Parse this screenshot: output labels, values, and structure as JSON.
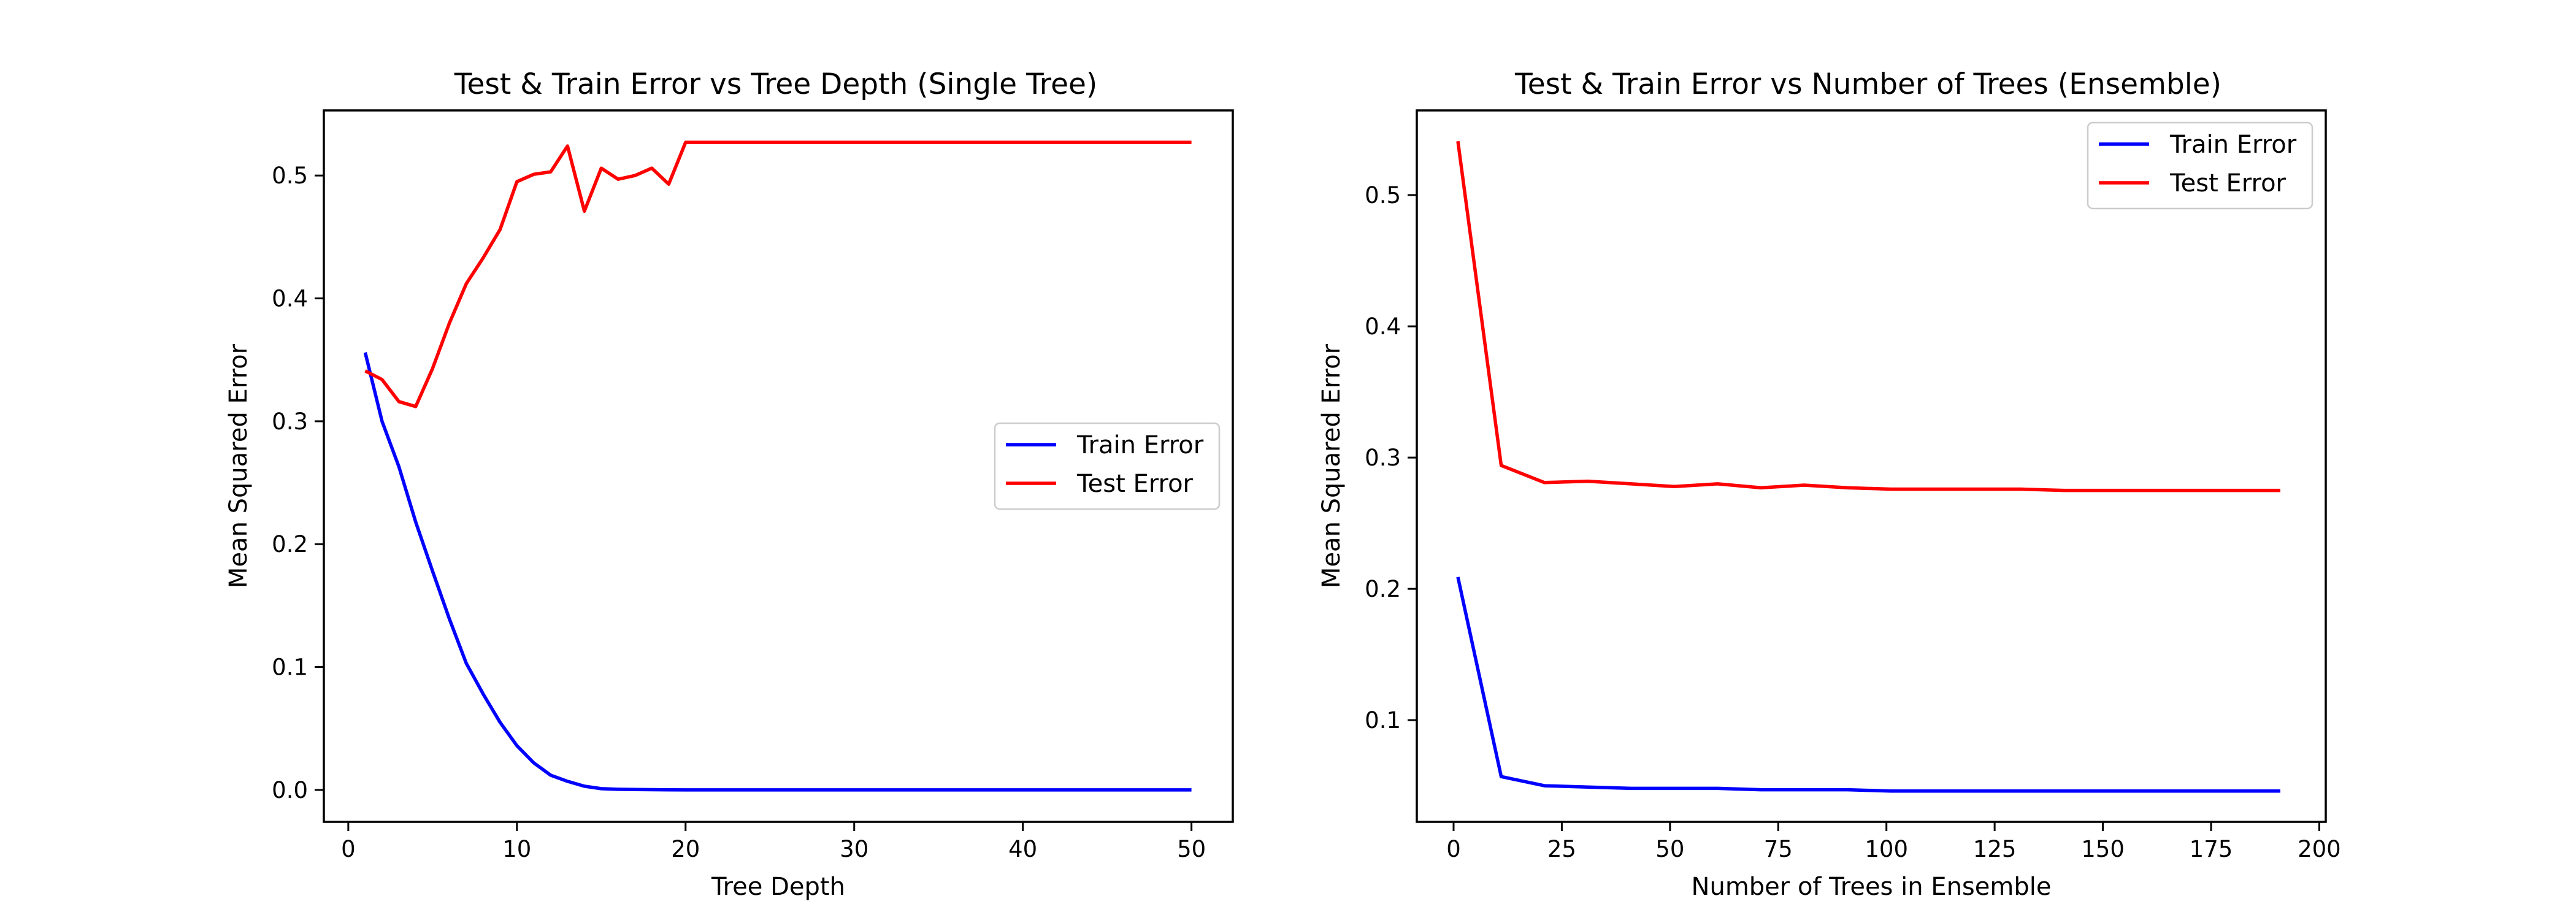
{
  "chart_data": [
    {
      "type": "line",
      "title": "Test & Train Error vs Tree Depth (Single Tree)",
      "xlabel": "Tree Depth",
      "ylabel": "Mean Squared Error",
      "xlim": [
        -1.45,
        52.45
      ],
      "ylim": [
        -0.026,
        0.553
      ],
      "xticks": [
        0,
        10,
        20,
        30,
        40,
        50
      ],
      "xtick_labels": [
        "0",
        "10",
        "20",
        "30",
        "40",
        "50"
      ],
      "yticks": [
        0.0,
        0.1,
        0.2,
        0.3,
        0.4,
        0.5
      ],
      "ytick_labels": [
        "0.0",
        "0.1",
        "0.2",
        "0.3",
        "0.4",
        "0.5"
      ],
      "grid": false,
      "legend_position": "center-right",
      "x": [
        1,
        2,
        3,
        4,
        5,
        6,
        7,
        8,
        9,
        10,
        11,
        12,
        13,
        14,
        15,
        16,
        17,
        18,
        19,
        20,
        21,
        22,
        23,
        24,
        25,
        26,
        27,
        28,
        29,
        30,
        31,
        32,
        33,
        34,
        35,
        36,
        37,
        38,
        39,
        40,
        41,
        42,
        43,
        44,
        45,
        46,
        47,
        48,
        49,
        50
      ],
      "series": [
        {
          "name": "Train Error",
          "color": "#0000ff",
          "values": [
            0.356,
            0.3,
            0.263,
            0.218,
            0.178,
            0.139,
            0.103,
            0.078,
            0.055,
            0.036,
            0.022,
            0.012,
            0.007,
            0.003,
            0.001,
            0.0005,
            0.0003,
            0.0002,
            0.0001,
            0,
            0,
            0,
            0,
            0,
            0,
            0,
            0,
            0,
            0,
            0,
            0,
            0,
            0,
            0,
            0,
            0,
            0,
            0,
            0,
            0,
            0,
            0,
            0,
            0,
            0,
            0,
            0,
            0,
            0,
            0
          ]
        },
        {
          "name": "Test Error",
          "color": "#ff0000",
          "values": [
            0.341,
            0.334,
            0.316,
            0.312,
            0.343,
            0.38,
            0.412,
            0.433,
            0.456,
            0.495,
            0.501,
            0.503,
            0.524,
            0.471,
            0.506,
            0.497,
            0.5,
            0.506,
            0.493,
            0.527,
            0.527,
            0.527,
            0.527,
            0.527,
            0.527,
            0.527,
            0.527,
            0.527,
            0.527,
            0.527,
            0.527,
            0.527,
            0.527,
            0.527,
            0.527,
            0.527,
            0.527,
            0.527,
            0.527,
            0.527,
            0.527,
            0.527,
            0.527,
            0.527,
            0.527,
            0.527,
            0.527,
            0.527,
            0.527,
            0.527
          ]
        }
      ]
    },
    {
      "type": "line",
      "title": "Test & Train Error vs Number of Trees (Ensemble)",
      "xlabel": "Number of Trees in Ensemble",
      "ylabel": "Mean Squared Error",
      "xlim": [
        -8.5,
        201.5
      ],
      "ylim": [
        0.0225,
        0.5645
      ],
      "xticks": [
        0,
        25,
        50,
        75,
        100,
        125,
        150,
        175,
        200
      ],
      "xtick_labels": [
        "0",
        "25",
        "50",
        "75",
        "100",
        "125",
        "150",
        "175",
        "200"
      ],
      "yticks": [
        0.1,
        0.2,
        0.3,
        0.4,
        0.5
      ],
      "ytick_labels": [
        "0.1",
        "0.2",
        "0.3",
        "0.4",
        "0.5"
      ],
      "grid": false,
      "legend_position": "top-right",
      "x": [
        1,
        11,
        21,
        31,
        41,
        51,
        61,
        71,
        81,
        91,
        101,
        111,
        121,
        131,
        141,
        151,
        161,
        171,
        181,
        191
      ],
      "series": [
        {
          "name": "Train Error",
          "color": "#0000ff",
          "values": [
            0.209,
            0.057,
            0.05,
            0.049,
            0.048,
            0.048,
            0.048,
            0.047,
            0.047,
            0.047,
            0.046,
            0.046,
            0.046,
            0.046,
            0.046,
            0.046,
            0.046,
            0.046,
            0.046,
            0.046
          ]
        },
        {
          "name": "Test Error",
          "color": "#ff0000",
          "values": [
            0.541,
            0.294,
            0.281,
            0.282,
            0.28,
            0.278,
            0.28,
            0.277,
            0.279,
            0.277,
            0.276,
            0.276,
            0.276,
            0.276,
            0.275,
            0.275,
            0.275,
            0.275,
            0.275,
            0.275
          ]
        }
      ]
    }
  ]
}
